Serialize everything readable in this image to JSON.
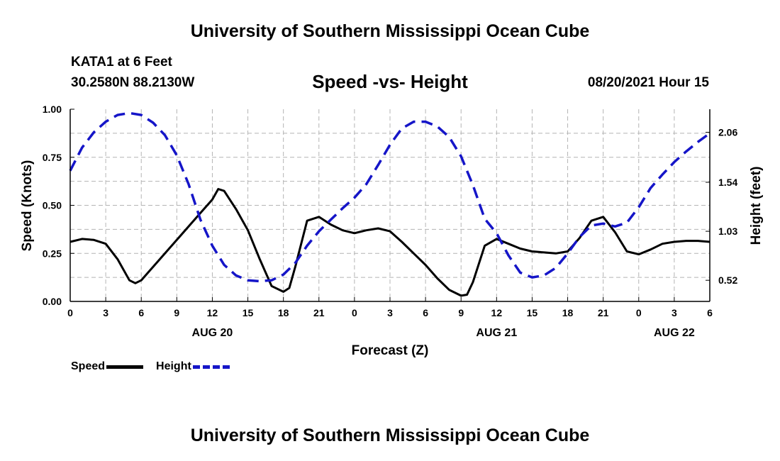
{
  "page": {
    "header_title": "University of Southern Mississippi Ocean Cube",
    "footer_title": "University of Southern Mississippi Ocean Cube",
    "station": "KATA1 at 6 Feet",
    "coordinates": "30.2580N  88.2130W",
    "datetime": "08/20/2021 Hour 15"
  },
  "legend": {
    "speed_label": "Speed",
    "height_label": "Height"
  },
  "colors": {
    "speed": "#000000",
    "height": "#1515c8",
    "grid": "#b4b4b4"
  },
  "chart_data": {
    "type": "line",
    "title": "Speed -vs- Height",
    "xlabel": "Forecast (Z)",
    "ylabel": "Speed (Knots)",
    "y2label": "Height (feet)",
    "x_range": [
      0,
      54
    ],
    "ylim": [
      0,
      1
    ],
    "y2lim": [
      0.3,
      2.3
    ],
    "x_ticks": [
      0,
      3,
      6,
      9,
      12,
      15,
      18,
      21,
      24,
      27,
      30,
      33,
      36,
      39,
      42,
      45,
      48,
      51,
      54
    ],
    "x_tick_labels": [
      "0",
      "3",
      "6",
      "9",
      "12",
      "15",
      "18",
      "21",
      "0",
      "3",
      "6",
      "9",
      "12",
      "15",
      "18",
      "21",
      "0",
      "3",
      "6"
    ],
    "y_ticks": [
      0,
      0.25,
      0.5,
      0.75,
      1
    ],
    "y_tick_labels": [
      "0.00",
      "0.25",
      "0.50",
      "0.75",
      "1.00"
    ],
    "y2_ticks": [
      0.52,
      1.03,
      1.54,
      2.06
    ],
    "y2_tick_labels": [
      "0.52",
      "1.03",
      "1.54",
      "2.06"
    ],
    "day_labels": [
      {
        "x": 12,
        "label": "AUG 20"
      },
      {
        "x": 36,
        "label": "AUG 21"
      },
      {
        "x": 51,
        "label": "AUG 22"
      }
    ],
    "grid": true,
    "series": [
      {
        "name": "Speed",
        "axis": "left",
        "style": "solid",
        "x": [
          0,
          1,
          2,
          3,
          4,
          5,
          5.5,
          6,
          7,
          8,
          9,
          10,
          11,
          12,
          12.5,
          13,
          14,
          15,
          16,
          17,
          18,
          18.5,
          19,
          20,
          21,
          22,
          23,
          24,
          25,
          26,
          27,
          28,
          29,
          30,
          31,
          32,
          33,
          33.5,
          34,
          35,
          36,
          37,
          38,
          39,
          40,
          41,
          42,
          43,
          44,
          45,
          46,
          47,
          48,
          49,
          50,
          51,
          52,
          53,
          54
        ],
        "values": [
          0.31,
          0.325,
          0.32,
          0.3,
          0.22,
          0.11,
          0.095,
          0.11,
          0.18,
          0.25,
          0.32,
          0.39,
          0.46,
          0.53,
          0.585,
          0.575,
          0.48,
          0.37,
          0.22,
          0.08,
          0.05,
          0.07,
          0.18,
          0.42,
          0.44,
          0.4,
          0.37,
          0.355,
          0.37,
          0.38,
          0.365,
          0.31,
          0.25,
          0.19,
          0.12,
          0.06,
          0.03,
          0.035,
          0.1,
          0.29,
          0.325,
          0.3,
          0.275,
          0.26,
          0.255,
          0.25,
          0.26,
          0.33,
          0.42,
          0.44,
          0.36,
          0.26,
          0.245,
          0.27,
          0.3,
          0.31,
          0.315,
          0.315,
          0.31
        ]
      },
      {
        "name": "Height",
        "axis": "right",
        "style": "dashed",
        "x": [
          0,
          1,
          2,
          3,
          4,
          5,
          6,
          7,
          8,
          9,
          10,
          11,
          12,
          13,
          14,
          15,
          16,
          17,
          18,
          19,
          20,
          21,
          22,
          23,
          24,
          25,
          26,
          27,
          28,
          29,
          30,
          31,
          32,
          33,
          34,
          35,
          36,
          37,
          38,
          39,
          40,
          41,
          42,
          43,
          44,
          45,
          46,
          47,
          48,
          49,
          50,
          51,
          52,
          53,
          54
        ],
        "values": [
          1.66,
          1.9,
          2.06,
          2.17,
          2.24,
          2.26,
          2.24,
          2.16,
          2.03,
          1.82,
          1.52,
          1.15,
          0.88,
          0.68,
          0.57,
          0.52,
          0.51,
          0.52,
          0.58,
          0.7,
          0.88,
          1.03,
          1.15,
          1.27,
          1.38,
          1.52,
          1.72,
          1.93,
          2.1,
          2.17,
          2.17,
          2.12,
          2.01,
          1.81,
          1.51,
          1.16,
          1.01,
          0.78,
          0.6,
          0.55,
          0.57,
          0.65,
          0.8,
          0.97,
          1.09,
          1.11,
          1.08,
          1.12,
          1.28,
          1.48,
          1.62,
          1.75,
          1.86,
          1.96,
          2.05
        ]
      }
    ]
  }
}
